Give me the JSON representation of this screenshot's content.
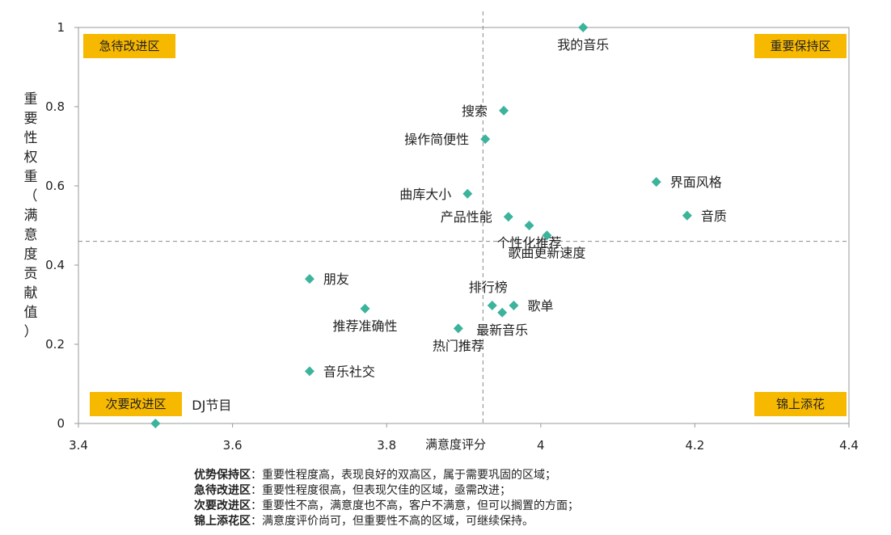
{
  "chart_data": {
    "type": "scatter",
    "xlabel": "满意度评分",
    "ylabel": "重要性权重（满意度贡献值）",
    "xlim": [
      3.4,
      4.4
    ],
    "ylim": [
      0,
      1
    ],
    "xticks": [
      "3.4",
      "3.6",
      "3.8",
      "4",
      "4.2",
      "4.4"
    ],
    "yticks": [
      "0",
      "0.2",
      "0.4",
      "0.6",
      "0.8",
      "1"
    ],
    "x_divider": 3.925,
    "y_divider": 0.46,
    "marker_color": "#3cb39b",
    "quadrant_color": "#f7b800",
    "quadrant_labels": [
      {
        "text": "急待改进区",
        "corner": "top-left"
      },
      {
        "text": "重要保持区",
        "corner": "top-right"
      },
      {
        "text": "次要改进区",
        "corner": "bottom-left"
      },
      {
        "text": "锦上添花",
        "corner": "bottom-right"
      }
    ],
    "points": [
      {
        "label": "我的音乐",
        "x": 4.055,
        "y": 1.0,
        "anchor": "below"
      },
      {
        "label": "搜索",
        "x": 3.952,
        "y": 0.79,
        "anchor": "left"
      },
      {
        "label": "操作简便性",
        "x": 3.928,
        "y": 0.718,
        "anchor": "left"
      },
      {
        "label": "界面风格",
        "x": 4.15,
        "y": 0.61,
        "anchor": "right"
      },
      {
        "label": "曲库大小",
        "x": 3.905,
        "y": 0.58,
        "anchor": "left"
      },
      {
        "label": "音质",
        "x": 4.19,
        "y": 0.525,
        "anchor": "right"
      },
      {
        "label": "产品性能",
        "x": 3.958,
        "y": 0.522,
        "anchor": "left"
      },
      {
        "label": "个性化推荐",
        "x": 3.985,
        "y": 0.5,
        "anchor": "below"
      },
      {
        "label": "歌曲更新速度",
        "x": 4.008,
        "y": 0.475,
        "anchor": "below"
      },
      {
        "label": "朋友",
        "x": 3.7,
        "y": 0.365,
        "anchor": "right"
      },
      {
        "label": "排行榜",
        "x": 3.937,
        "y": 0.298,
        "anchor": "above"
      },
      {
        "label": "歌单",
        "x": 3.965,
        "y": 0.298,
        "anchor": "right"
      },
      {
        "label": "最新音乐",
        "x": 3.95,
        "y": 0.28,
        "anchor": "below"
      },
      {
        "label": "推荐准确性",
        "x": 3.772,
        "y": 0.29,
        "anchor": "below"
      },
      {
        "label": "热门推荐",
        "x": 3.893,
        "y": 0.24,
        "anchor": "below"
      },
      {
        "label": "音乐社交",
        "x": 3.7,
        "y": 0.132,
        "anchor": "right"
      },
      {
        "label": "DJ节目",
        "x": 3.5,
        "y": 0.0,
        "anchor": "upright"
      }
    ]
  },
  "legend": [
    {
      "name": "优势保持区",
      "desc": "：重要性程度高，表现良好的双高区，属于需要巩固的区域；"
    },
    {
      "name": "急待改进区",
      "desc": "：重要性程度很高，但表现欠佳的区域，亟需改进；"
    },
    {
      "name": "次要改进区",
      "desc": "：重要性不高，满意度也不高，客户不满意，但可以搁置的方面；"
    },
    {
      "name": "锦上添花区",
      "desc": "：满意度评价尚可，但重要性不高的区域，可继续保持。"
    }
  ]
}
